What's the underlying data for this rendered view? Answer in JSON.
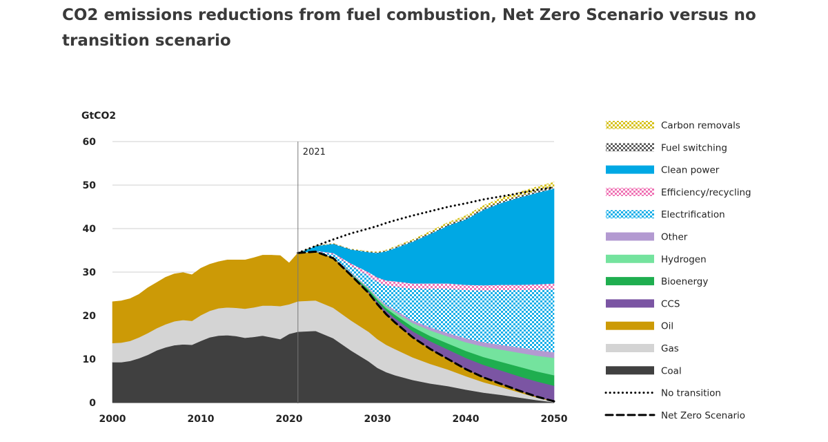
{
  "title": "CO2 emissions reductions from fuel combustion, Net Zero Scenario versus no transition scenario",
  "colors": {
    "coal": "#404040",
    "gas": "#d4d4d4",
    "oil": "#cc9a06",
    "ccs": "#7b55a3",
    "bioenergy": "#1fae4f",
    "hydrogen": "#74e39e",
    "other": "#b39ad1",
    "electrification": "#15aee8",
    "efficiency": "#ef73b4",
    "clean_power": "#00a8e4",
    "fuel_switching": "#5e5e5e",
    "carbon_removals": "#d7c21c"
  },
  "chart_data": {
    "type": "area",
    "title": "CO2 emissions reductions from fuel combustion, Net Zero Scenario versus no transition scenario",
    "ylabel": "GtCO2",
    "xlabel": "",
    "xlim": [
      2000,
      2050
    ],
    "ylim": [
      0,
      60
    ],
    "x_ticks": [
      "2000",
      "2010",
      "2020",
      "2030",
      "2040",
      "2050"
    ],
    "y_ticks": [
      "0",
      "10",
      "20",
      "30",
      "40",
      "50",
      "60"
    ],
    "annotation": {
      "x": 2021,
      "label": "2021"
    },
    "historical": {
      "x": [
        2000,
        2001,
        2002,
        2003,
        2004,
        2005,
        2006,
        2007,
        2008,
        2009,
        2010,
        2011,
        2012,
        2013,
        2014,
        2015,
        2016,
        2017,
        2018,
        2019,
        2020,
        2021
      ],
      "series": [
        {
          "name": "Coal",
          "values": [
            9.3,
            9.3,
            9.6,
            10.2,
            11.0,
            12.0,
            12.7,
            13.2,
            13.4,
            13.3,
            14.2,
            15.0,
            15.4,
            15.5,
            15.3,
            14.9,
            15.1,
            15.4,
            15.0,
            14.6,
            15.8,
            16.3
          ]
        },
        {
          "name": "Gas",
          "values": [
            4.4,
            4.5,
            4.6,
            4.8,
            5.0,
            5.1,
            5.3,
            5.5,
            5.6,
            5.5,
            5.9,
            6.1,
            6.3,
            6.4,
            6.5,
            6.7,
            6.8,
            6.9,
            7.3,
            7.6,
            6.8,
            7.0
          ]
        },
        {
          "name": "Oil",
          "values": [
            9.5,
            9.6,
            9.7,
            9.9,
            10.4,
            10.5,
            10.8,
            10.9,
            10.9,
            10.6,
            10.8,
            10.7,
            10.7,
            10.9,
            11.0,
            11.2,
            11.4,
            11.6,
            11.6,
            11.6,
            9.5,
            11.1
          ]
        }
      ]
    },
    "projection": {
      "x": [
        2021,
        2023,
        2025,
        2027,
        2029,
        2030,
        2031,
        2032,
        2034,
        2036,
        2038,
        2040,
        2042,
        2044,
        2046,
        2048,
        2050
      ],
      "series": [
        {
          "name": "Coal",
          "values": [
            16.3,
            16.5,
            14.8,
            12.0,
            9.5,
            8.0,
            7.0,
            6.3,
            5.2,
            4.4,
            3.8,
            3.0,
            2.3,
            1.8,
            1.2,
            0.6,
            0.1
          ]
        },
        {
          "name": "Gas",
          "values": [
            7.0,
            7.0,
            7.0,
            6.9,
            6.8,
            6.6,
            6.3,
            6.0,
            5.2,
            4.5,
            3.8,
            3.1,
            2.4,
            1.8,
            1.2,
            0.6,
            0.1
          ]
        },
        {
          "name": "Oil",
          "values": [
            11.1,
            11.2,
            11.4,
            10.4,
            8.9,
            8.0,
            7.0,
            6.1,
            4.6,
            3.4,
            2.4,
            1.6,
            1.1,
            0.7,
            0.4,
            0.2,
            0.1
          ]
        },
        {
          "name": "CCS",
          "values": [
            0,
            0,
            0.1,
            0.2,
            0.4,
            0.6,
            0.8,
            1.0,
            1.4,
            1.8,
            2.2,
            2.6,
            2.9,
            3.1,
            3.3,
            3.5,
            3.6
          ]
        },
        {
          "name": "Bioenergy",
          "values": [
            0,
            0,
            0.1,
            0.2,
            0.4,
            0.5,
            0.6,
            0.8,
            1.0,
            1.2,
            1.4,
            1.6,
            1.8,
            2.0,
            2.2,
            2.3,
            2.4
          ]
        },
        {
          "name": "Hydrogen",
          "values": [
            0,
            0,
            0,
            0.1,
            0.2,
            0.3,
            0.4,
            0.6,
            0.9,
            1.3,
            1.6,
            2.0,
            2.4,
            2.8,
            3.2,
            3.6,
            4.0
          ]
        },
        {
          "name": "Other",
          "values": [
            0,
            0,
            0.1,
            0.2,
            0.3,
            0.3,
            0.4,
            0.5,
            0.6,
            0.7,
            0.8,
            0.9,
            1.0,
            1.1,
            1.2,
            1.3,
            1.3
          ]
        },
        {
          "name": "Electrification",
          "values": [
            0,
            0.1,
            0.6,
            1.5,
            2.7,
            3.5,
            4.5,
            5.4,
            7.3,
            8.9,
            10.2,
            11.1,
            11.9,
            12.6,
            13.2,
            13.9,
            14.5
          ]
        },
        {
          "name": "Efficiency/recycling",
          "values": [
            0,
            0.1,
            0.3,
            0.5,
            0.8,
            1.0,
            1.1,
            1.2,
            1.2,
            1.2,
            1.2,
            1.2,
            1.2,
            1.2,
            1.2,
            1.2,
            1.3
          ]
        },
        {
          "name": "Clean power",
          "values": [
            0,
            1.1,
            2.1,
            3.2,
            4.6,
            5.6,
            6.7,
            7.6,
            9.6,
            11.4,
            13.3,
            15.0,
            17.3,
            18.8,
            20.0,
            21.0,
            21.8
          ]
        },
        {
          "name": "Fuel switching",
          "values": [
            0,
            0.05,
            0.1,
            0.1,
            0.15,
            0.2,
            0.2,
            0.25,
            0.3,
            0.3,
            0.35,
            0.4,
            0.4,
            0.45,
            0.45,
            0.5,
            0.5
          ]
        },
        {
          "name": "Carbon removals",
          "values": [
            0,
            0,
            0,
            0,
            0.05,
            0.05,
            0.1,
            0.15,
            0.2,
            0.3,
            0.4,
            0.5,
            0.6,
            0.7,
            0.8,
            0.9,
            1.0
          ]
        }
      ]
    },
    "lines": [
      {
        "name": "No transition",
        "style": "dotted",
        "x": [
          2021,
          2023,
          2025,
          2027,
          2029,
          2030,
          2031,
          2032,
          2034,
          2036,
          2038,
          2040,
          2042,
          2044,
          2046,
          2048,
          2050
        ],
        "values": [
          34.4,
          36.0,
          37.5,
          38.9,
          40.0,
          40.6,
          41.3,
          41.9,
          43.0,
          44.0,
          45.0,
          45.8,
          46.7,
          47.4,
          48.1,
          48.9,
          49.5
        ]
      },
      {
        "name": "Net Zero Scenario",
        "style": "dashed",
        "x": [
          2021,
          2023,
          2025,
          2027,
          2029,
          2030,
          2031,
          2032,
          2034,
          2036,
          2038,
          2040,
          2042,
          2044,
          2046,
          2048,
          2050
        ],
        "values": [
          34.4,
          34.7,
          33.2,
          29.3,
          25.2,
          22.6,
          20.3,
          18.4,
          15.0,
          12.3,
          10.0,
          7.7,
          5.8,
          4.3,
          2.8,
          1.4,
          0.3
        ]
      }
    ],
    "legend": {
      "position": "right",
      "entries": [
        {
          "label": "Carbon removals",
          "key": "carbon_removals",
          "kind": "checker"
        },
        {
          "label": "Fuel switching",
          "key": "fuel_switching",
          "kind": "checker"
        },
        {
          "label": "Clean power",
          "key": "clean_power",
          "kind": "solid"
        },
        {
          "label": "Efficiency/recycling",
          "key": "efficiency",
          "kind": "checker"
        },
        {
          "label": "Electrification",
          "key": "electrification",
          "kind": "checker"
        },
        {
          "label": "Other",
          "key": "other",
          "kind": "solid"
        },
        {
          "label": "Hydrogen",
          "key": "hydrogen",
          "kind": "solid"
        },
        {
          "label": "Bioenergy",
          "key": "bioenergy",
          "kind": "solid"
        },
        {
          "label": "CCS",
          "key": "ccs",
          "kind": "solid"
        },
        {
          "label": "Oil",
          "key": "oil",
          "kind": "solid"
        },
        {
          "label": "Gas",
          "key": "gas",
          "kind": "solid"
        },
        {
          "label": "Coal",
          "key": "coal",
          "kind": "solid"
        },
        {
          "label": "No transition",
          "key": "no_transition",
          "kind": "dotted"
        },
        {
          "label": "Net Zero Scenario",
          "key": "net_zero",
          "kind": "dashed"
        }
      ]
    }
  }
}
